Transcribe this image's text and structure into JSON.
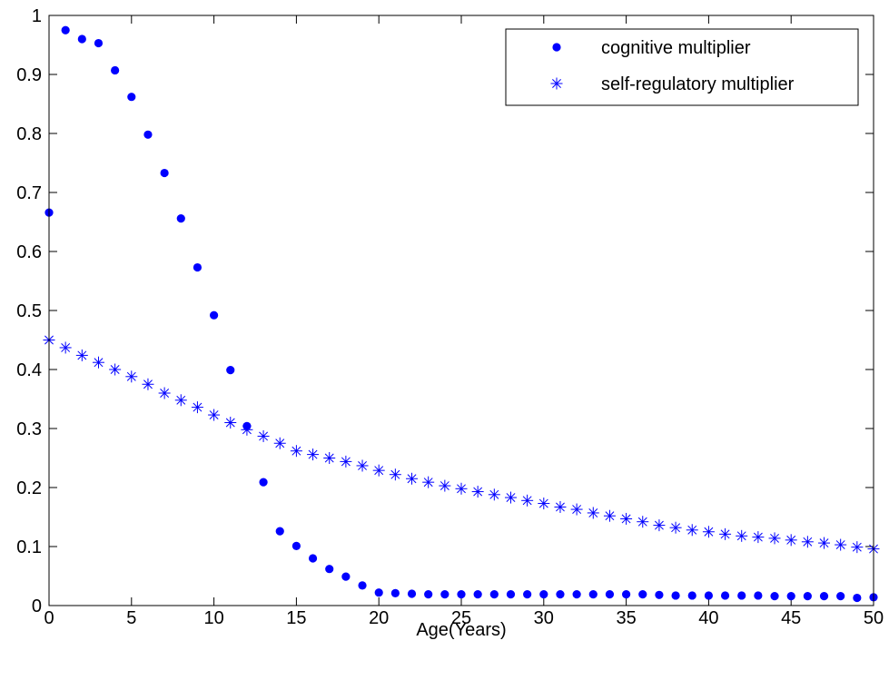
{
  "chart_data": {
    "type": "scatter",
    "title": "",
    "xlabel": "Age(Years)",
    "ylabel": "",
    "xlim": [
      0,
      50
    ],
    "ylim": [
      0,
      1
    ],
    "grid": false,
    "legend_position": "top-right",
    "x_ticks": [
      "0",
      "5",
      "10",
      "15",
      "20",
      "25",
      "30",
      "35",
      "40",
      "45",
      "50"
    ],
    "y_ticks": [
      "0",
      "0.1",
      "0.2",
      "0.3",
      "0.4",
      "0.5",
      "0.6",
      "0.7",
      "0.8",
      "0.9",
      "1"
    ],
    "colors": {
      "series": "#0000ff",
      "axis": "#000000",
      "background": "#ffffff"
    },
    "series": [
      {
        "name": "cognitive multiplier",
        "marker": "dot",
        "x": [
          0,
          1,
          2,
          3,
          4,
          5,
          6,
          7,
          8,
          9,
          10,
          11,
          12,
          13,
          14,
          15,
          16,
          17,
          18,
          19,
          20,
          21,
          22,
          23,
          24,
          25,
          26,
          27,
          28,
          29,
          30,
          31,
          32,
          33,
          34,
          35,
          36,
          37,
          38,
          39,
          40,
          41,
          42,
          43,
          44,
          45,
          46,
          47,
          48,
          49,
          50
        ],
        "y": [
          0.666,
          0.975,
          0.96,
          0.953,
          0.907,
          0.862,
          0.798,
          0.733,
          0.656,
          0.573,
          0.492,
          0.399,
          0.304,
          0.209,
          0.126,
          0.101,
          0.08,
          0.062,
          0.049,
          0.034,
          0.022,
          0.021,
          0.02,
          0.019,
          0.019,
          0.019,
          0.019,
          0.019,
          0.019,
          0.019,
          0.019,
          0.019,
          0.019,
          0.019,
          0.019,
          0.019,
          0.019,
          0.018,
          0.017,
          0.017,
          0.017,
          0.017,
          0.017,
          0.017,
          0.016,
          0.016,
          0.016,
          0.016,
          0.016,
          0.013,
          0.014
        ]
      },
      {
        "name": "self-regulatory multiplier",
        "marker": "asterisk",
        "x": [
          0,
          1,
          2,
          3,
          4,
          5,
          6,
          7,
          8,
          9,
          10,
          11,
          12,
          13,
          14,
          15,
          16,
          17,
          18,
          19,
          20,
          21,
          22,
          23,
          24,
          25,
          26,
          27,
          28,
          29,
          30,
          31,
          32,
          33,
          34,
          35,
          36,
          37,
          38,
          39,
          40,
          41,
          42,
          43,
          44,
          45,
          46,
          47,
          48,
          49,
          50
        ],
        "y": [
          0.45,
          0.437,
          0.424,
          0.412,
          0.4,
          0.388,
          0.375,
          0.36,
          0.348,
          0.336,
          0.323,
          0.31,
          0.298,
          0.287,
          0.275,
          0.262,
          0.256,
          0.25,
          0.244,
          0.237,
          0.229,
          0.222,
          0.215,
          0.209,
          0.203,
          0.198,
          0.193,
          0.188,
          0.183,
          0.178,
          0.173,
          0.167,
          0.163,
          0.157,
          0.152,
          0.147,
          0.142,
          0.136,
          0.132,
          0.128,
          0.125,
          0.121,
          0.118,
          0.116,
          0.114,
          0.111,
          0.108,
          0.106,
          0.103,
          0.099,
          0.096
        ]
      }
    ]
  }
}
